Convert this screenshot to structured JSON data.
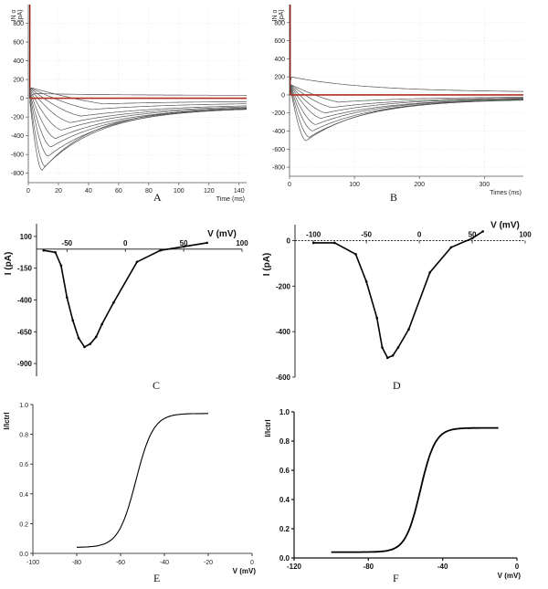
{
  "chart_data": [
    {
      "panel": "A",
      "type": "line",
      "ylabel": "IN o\n(pA)",
      "xlabel": "Time (ms)",
      "xlim": [
        0,
        145
      ],
      "ylim": [
        -900,
        1000
      ],
      "xticks": [
        0,
        20,
        40,
        60,
        80,
        100,
        120,
        140
      ],
      "yticks": [
        -800,
        -600,
        -400,
        -200,
        0,
        200,
        400,
        600,
        800
      ],
      "series": [
        {
          "peak_time": 9,
          "peak": -770,
          "tau": 35,
          "plateau": -100,
          "color": "#555555"
        },
        {
          "peak_time": 11,
          "peak": -730,
          "tau": 38,
          "plateau": -100,
          "color": "#555555"
        },
        {
          "peak_time": 13,
          "peak": -620,
          "tau": 42,
          "plateau": -95,
          "color": "#555555"
        },
        {
          "peak_time": 15,
          "peak": -520,
          "tau": 45,
          "plateau": -90,
          "color": "#555555"
        },
        {
          "peak_time": 18,
          "peak": -430,
          "tau": 48,
          "plateau": -85,
          "color": "#555555"
        },
        {
          "peak_time": 22,
          "peak": -340,
          "tau": 50,
          "plateau": -80,
          "color": "#555555"
        },
        {
          "peak_time": 28,
          "peak": -260,
          "tau": 55,
          "plateau": -70,
          "color": "#555555"
        },
        {
          "peak_time": 35,
          "peak": -190,
          "tau": 60,
          "plateau": -60,
          "color": "#555555"
        },
        {
          "peak_time": 42,
          "peak": -120,
          "tau": 60,
          "plateau": -45,
          "color": "#555555"
        },
        {
          "peak_time": 50,
          "peak": -60,
          "tau": 60,
          "plateau": -30,
          "color": "#555555"
        },
        {
          "peak_time": 5,
          "peak": 50,
          "tau": 60,
          "plateau": 30,
          "color": "#555555"
        },
        {
          "peak_time": 0,
          "peak": 0,
          "tau": 1,
          "plateau": 0,
          "color": "#b03020"
        }
      ]
    },
    {
      "panel": "B",
      "type": "line",
      "ylabel": "IN o\n(pA)",
      "xlabel": "Times (ms)",
      "xlim": [
        0,
        360
      ],
      "ylim": [
        -900,
        1000
      ],
      "xticks": [
        0,
        100,
        200,
        300
      ],
      "yticks": [
        -800,
        -600,
        -400,
        -200,
        0,
        200,
        400,
        600,
        800
      ],
      "series": [
        {
          "peak_time": 25,
          "peak": -510,
          "tau": 90,
          "plateau": -45,
          "color": "#555555"
        },
        {
          "peak_time": 30,
          "peak": -470,
          "tau": 95,
          "plateau": -45,
          "color": "#555555"
        },
        {
          "peak_time": 35,
          "peak": -400,
          "tau": 100,
          "plateau": -40,
          "color": "#555555"
        },
        {
          "peak_time": 40,
          "peak": -330,
          "tau": 100,
          "plateau": -40,
          "color": "#555555"
        },
        {
          "peak_time": 48,
          "peak": -260,
          "tau": 110,
          "plateau": -35,
          "color": "#555555"
        },
        {
          "peak_time": 55,
          "peak": -200,
          "tau": 110,
          "plateau": -30,
          "color": "#555555"
        },
        {
          "peak_time": 65,
          "peak": -140,
          "tau": 120,
          "plateau": -25,
          "color": "#555555"
        },
        {
          "peak_time": 75,
          "peak": -80,
          "tau": 120,
          "plateau": -20,
          "color": "#555555"
        },
        {
          "peak_time": 2,
          "peak": 200,
          "tau": 120,
          "plateau": 30,
          "color": "#555555"
        },
        {
          "peak_time": 0,
          "peak": 0,
          "tau": 1,
          "plateau": 0,
          "color": "#b03020"
        }
      ]
    },
    {
      "panel": "C",
      "type": "line",
      "xlabel": "V (mV)",
      "ylabel": "I (pA)",
      "xlim": [
        -80,
        100
      ],
      "ylim": [
        -1000,
        200
      ],
      "xticks": [
        -50,
        0,
        50,
        100
      ],
      "yticks": [
        100,
        -150,
        -400,
        -650,
        -900
      ],
      "x": [
        -70,
        -60,
        -55,
        -50,
        -45,
        -40,
        -35,
        -30,
        -25,
        -20,
        -10,
        10,
        30,
        50,
        70
      ],
      "y": [
        -10,
        -25,
        -130,
        -380,
        -560,
        -700,
        -770,
        -745,
        -690,
        -590,
        -420,
        -100,
        -10,
        20,
        50
      ]
    },
    {
      "panel": "D",
      "type": "line",
      "xlabel": "V (mV)",
      "ylabel": "I (pA)",
      "xlim": [
        -120,
        100
      ],
      "ylim": [
        -600,
        70
      ],
      "xticks": [
        -100,
        -50,
        0,
        50,
        100
      ],
      "yticks": [
        0,
        -200,
        -400,
        -600
      ],
      "x": [
        -100,
        -80,
        -60,
        -50,
        -40,
        -35,
        -30,
        -25,
        -20,
        -10,
        10,
        30,
        50,
        60
      ],
      "y": [
        -10,
        -10,
        -60,
        -180,
        -340,
        -470,
        -515,
        -505,
        -470,
        -390,
        -140,
        -30,
        10,
        40
      ]
    },
    {
      "panel": "E",
      "type": "line",
      "xlabel": "V (mV)",
      "ylabel": "I/Ictrl",
      "xlim": [
        -100,
        0
      ],
      "ylim": [
        0,
        1.0
      ],
      "xticks": [
        -100,
        -80,
        -60,
        -40,
        -20,
        0
      ],
      "yticks": [
        0.0,
        0.2,
        0.4,
        0.6,
        0.8,
        1.0
      ],
      "curve": {
        "x_start": -80,
        "x_end": -20,
        "min": 0.04,
        "max": 0.94,
        "v_half": -53,
        "slope": 4
      }
    },
    {
      "panel": "F",
      "type": "line",
      "xlabel": "V (mV)",
      "ylabel": "I/Ictrl",
      "xlim": [
        -120,
        0
      ],
      "ylim": [
        0,
        1.0
      ],
      "xticks": [
        -120,
        -80,
        -40,
        0
      ],
      "yticks": [
        0.0,
        0.2,
        0.4,
        0.6,
        0.8,
        1.0
      ],
      "curve": {
        "x_start": -100,
        "x_end": -10,
        "min": 0.04,
        "max": 0.89,
        "v_half": -52,
        "slope": 4
      }
    }
  ],
  "panel_labels": [
    "A",
    "B",
    "C",
    "D",
    "E",
    "F"
  ]
}
